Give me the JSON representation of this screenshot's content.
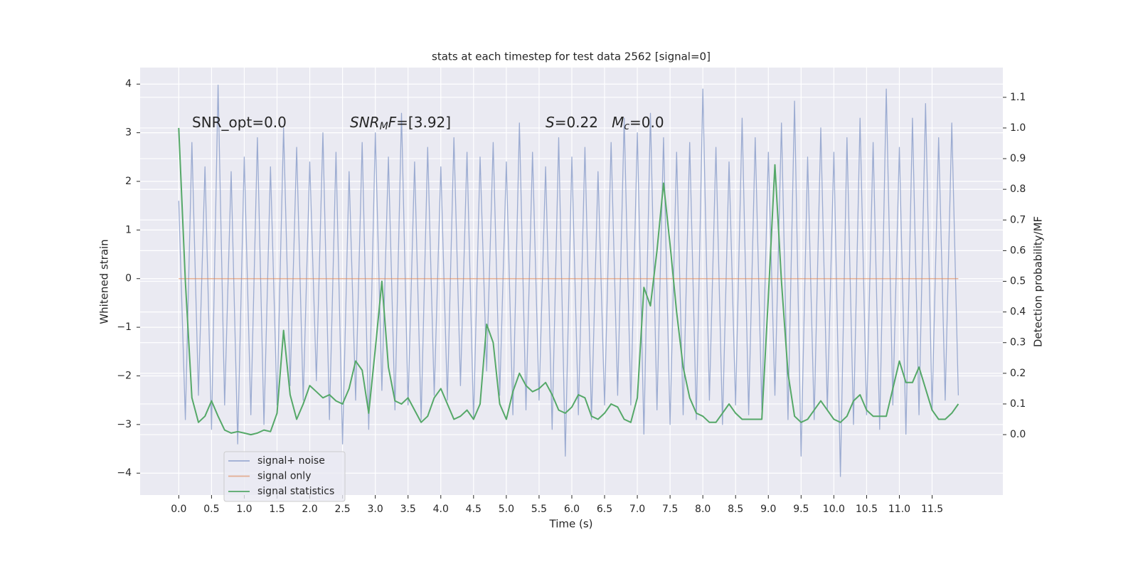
{
  "chart_data": {
    "type": "line",
    "title": "stats at each timestep for test data 2562 [signal=0]",
    "x_label": "Time (s)",
    "y_label": "Whitened strain",
    "y2_label": "Detection probability/MF",
    "annotations": [
      [
        {
          "text": "SNR_opt=0.0",
          "style": "normal"
        }
      ],
      [
        {
          "text": "SNR",
          "style": "italic"
        },
        {
          "text": "M",
          "style": "sub"
        },
        {
          "text": "F",
          "style": "italic"
        },
        {
          "text": "=[3.92]",
          "style": "normal"
        }
      ],
      [
        {
          "text": "S",
          "style": "italic"
        },
        {
          "text": "=0.22   ",
          "style": "normal"
        },
        {
          "text": "M",
          "style": "italic"
        },
        {
          "text": "c",
          "style": "sub"
        },
        {
          "text": "=0.0",
          "style": "normal"
        }
      ]
    ],
    "x": [
      0.0,
      0.1,
      0.2,
      0.3,
      0.4,
      0.5,
      0.6,
      0.7,
      0.8,
      0.9,
      1.0,
      1.1,
      1.2,
      1.3,
      1.4,
      1.5,
      1.6,
      1.7,
      1.8,
      1.9,
      2.0,
      2.1,
      2.2,
      2.3,
      2.4,
      2.5,
      2.6,
      2.7,
      2.8,
      2.9,
      3.0,
      3.1,
      3.2,
      3.3,
      3.4,
      3.5,
      3.6,
      3.7,
      3.8,
      3.9,
      4.0,
      4.1,
      4.2,
      4.3,
      4.4,
      4.5,
      4.6,
      4.7,
      4.8,
      4.9,
      5.0,
      5.1,
      5.2,
      5.3,
      5.4,
      5.5,
      5.6,
      5.7,
      5.8,
      5.9,
      6.0,
      6.1,
      6.2,
      6.3,
      6.4,
      6.5,
      6.6,
      6.7,
      6.8,
      6.9,
      7.0,
      7.1,
      7.2,
      7.3,
      7.4,
      7.5,
      7.6,
      7.7,
      7.8,
      7.9,
      8.0,
      8.1,
      8.2,
      8.3,
      8.4,
      8.5,
      8.6,
      8.7,
      8.8,
      8.9,
      9.0,
      9.1,
      9.2,
      9.3,
      9.4,
      9.5,
      9.6,
      9.7,
      9.8,
      9.9,
      10.0,
      10.1,
      10.2,
      10.3,
      10.4,
      10.5,
      10.6,
      10.7,
      10.8,
      10.9,
      11.0,
      11.1,
      11.2,
      11.3,
      11.4,
      11.5,
      11.6,
      11.7,
      11.8,
      11.9
    ],
    "series": [
      {
        "name": "signal+ noise",
        "color": "#8da0cb",
        "values": [
          1.6,
          -2.9,
          2.8,
          -2.4,
          2.3,
          -3.1,
          3.98,
          -2.6,
          2.2,
          -3.4,
          2.5,
          -2.8,
          2.9,
          -3.0,
          2.3,
          -2.6,
          3.1,
          -2.2,
          2.7,
          -2.5,
          2.4,
          -2.1,
          3.0,
          -2.9,
          2.6,
          -3.4,
          2.2,
          -2.5,
          2.8,
          -3.1,
          3.0,
          -2.3,
          2.5,
          -2.7,
          3.4,
          -2.6,
          2.4,
          -2.9,
          2.7,
          -2.4,
          2.3,
          -2.5,
          2.9,
          -2.2,
          2.6,
          -2.9,
          2.5,
          -1.9,
          2.8,
          -2.4,
          2.4,
          -2.8,
          3.2,
          -2.7,
          2.6,
          -2.5,
          2.3,
          -3.1,
          2.9,
          -3.65,
          2.5,
          -2.8,
          2.7,
          -2.9,
          2.2,
          -2.6,
          2.8,
          -2.4,
          3.3,
          -2.6,
          3.0,
          -3.2,
          3.4,
          -2.7,
          2.9,
          -3.0,
          2.6,
          -2.8,
          2.8,
          -2.9,
          3.9,
          -2.5,
          2.7,
          -3.0,
          2.4,
          -2.6,
          3.3,
          -2.8,
          2.9,
          -2.7,
          2.6,
          -2.4,
          3.2,
          -2.9,
          3.65,
          -3.65,
          2.5,
          -2.9,
          3.1,
          -2.7,
          2.6,
          -4.07,
          2.9,
          -3.0,
          3.3,
          -2.8,
          2.8,
          -3.1,
          3.9,
          -2.6,
          2.7,
          -3.2,
          3.3,
          -2.8,
          3.6,
          -2.7,
          2.9,
          -2.5,
          3.2,
          -2.4
        ]
      },
      {
        "name": "signal only",
        "color": "#dd8452",
        "values": [
          0,
          0,
          0,
          0,
          0,
          0,
          0,
          0,
          0,
          0,
          0,
          0,
          0,
          0,
          0,
          0,
          0,
          0,
          0,
          0,
          0,
          0,
          0,
          0,
          0,
          0,
          0,
          0,
          0,
          0,
          0,
          0,
          0,
          0,
          0,
          0,
          0,
          0,
          0,
          0,
          0,
          0,
          0,
          0,
          0,
          0,
          0,
          0,
          0,
          0,
          0,
          0,
          0,
          0,
          0,
          0,
          0,
          0,
          0,
          0,
          0,
          0,
          0,
          0,
          0,
          0,
          0,
          0,
          0,
          0,
          0,
          0,
          0,
          0,
          0,
          0,
          0,
          0,
          0,
          0,
          0,
          0,
          0,
          0,
          0,
          0,
          0,
          0,
          0,
          0,
          0,
          0,
          0,
          0,
          0,
          0,
          0,
          0,
          0,
          0,
          0,
          0,
          0,
          0,
          0,
          0,
          0,
          0,
          0,
          0,
          0,
          0,
          0,
          0,
          0,
          0,
          0,
          0,
          0,
          0
        ]
      },
      {
        "name": "signal statistics",
        "color": "#55a868",
        "axis": "y2",
        "values": [
          1.0,
          0.5,
          0.12,
          0.04,
          0.06,
          0.11,
          0.06,
          0.015,
          0.005,
          0.01,
          0.005,
          0.0,
          0.005,
          0.015,
          0.01,
          0.07,
          0.34,
          0.13,
          0.05,
          0.1,
          0.16,
          0.14,
          0.12,
          0.13,
          0.11,
          0.1,
          0.15,
          0.24,
          0.21,
          0.07,
          0.28,
          0.5,
          0.22,
          0.11,
          0.1,
          0.12,
          0.08,
          0.04,
          0.06,
          0.12,
          0.15,
          0.1,
          0.05,
          0.06,
          0.08,
          0.05,
          0.1,
          0.36,
          0.3,
          0.1,
          0.05,
          0.14,
          0.2,
          0.16,
          0.14,
          0.15,
          0.17,
          0.13,
          0.08,
          0.07,
          0.09,
          0.13,
          0.12,
          0.06,
          0.05,
          0.07,
          0.1,
          0.09,
          0.05,
          0.04,
          0.12,
          0.48,
          0.42,
          0.6,
          0.82,
          0.62,
          0.4,
          0.22,
          0.12,
          0.07,
          0.06,
          0.04,
          0.04,
          0.07,
          0.1,
          0.07,
          0.05,
          0.05,
          0.05,
          0.05,
          0.45,
          0.88,
          0.5,
          0.2,
          0.06,
          0.04,
          0.05,
          0.08,
          0.11,
          0.08,
          0.05,
          0.04,
          0.06,
          0.11,
          0.13,
          0.08,
          0.06,
          0.06,
          0.06,
          0.15,
          0.24,
          0.17,
          0.17,
          0.22,
          0.15,
          0.08,
          0.05,
          0.05,
          0.07,
          0.1
        ]
      }
    ],
    "xlim": [
      -0.59,
      12.58
    ],
    "xticks": [
      {
        "value": 0,
        "label": "0.0"
      },
      {
        "value": 0.5,
        "label": "0.5"
      },
      {
        "value": 1,
        "label": "1.0"
      },
      {
        "value": 1.5,
        "label": "1.5"
      },
      {
        "value": 2,
        "label": "2.0"
      },
      {
        "value": 2.5,
        "label": "2.5"
      },
      {
        "value": 3,
        "label": "3.0"
      },
      {
        "value": 3.5,
        "label": "3.5"
      },
      {
        "value": 4,
        "label": "4.0"
      },
      {
        "value": 4.5,
        "label": "4.5"
      },
      {
        "value": 5,
        "label": "5.0"
      },
      {
        "value": 5.5,
        "label": "5.5"
      },
      {
        "value": 6,
        "label": "6.0"
      },
      {
        "value": 6.5,
        "label": "6.5"
      },
      {
        "value": 7,
        "label": "7.0"
      },
      {
        "value": 7.5,
        "label": "7.5"
      },
      {
        "value": 8,
        "label": "8.0"
      },
      {
        "value": 8.5,
        "label": "8.5"
      },
      {
        "value": 9,
        "label": "9.0"
      },
      {
        "value": 9.5,
        "label": "9.5"
      },
      {
        "value": 10,
        "label": "10.0"
      },
      {
        "value": 10.5,
        "label": "10.5"
      },
      {
        "value": 11,
        "label": "11.0"
      },
      {
        "value": 11.5,
        "label": "11.5"
      }
    ],
    "ylim": [
      -4.45,
      4.34
    ],
    "yticks": [
      {
        "value": -4,
        "label": "−4"
      },
      {
        "value": -3,
        "label": "−3"
      },
      {
        "value": -2,
        "label": "−2"
      },
      {
        "value": -1,
        "label": "−1"
      },
      0,
      1,
      2,
      3,
      4
    ],
    "y2lim": [
      -0.197,
      1.197
    ],
    "y2ticks": [
      {
        "value": 0,
        "label": "0.0"
      },
      {
        "value": 0.1,
        "label": "0.1"
      },
      {
        "value": 0.2,
        "label": "0.2"
      },
      {
        "value": 0.3,
        "label": "0.3"
      },
      {
        "value": 0.4,
        "label": "0.4"
      },
      {
        "value": 0.5,
        "label": "0.5"
      },
      {
        "value": 0.6,
        "label": "0.6"
      },
      {
        "value": 0.7,
        "label": "0.7"
      },
      {
        "value": 0.8,
        "label": "0.8"
      },
      {
        "value": 0.9,
        "label": "0.9"
      },
      {
        "value": 1.0,
        "label": "1.0"
      },
      {
        "value": 1.1,
        "label": "1.1"
      }
    ],
    "grid": true,
    "legend": "lower left"
  }
}
